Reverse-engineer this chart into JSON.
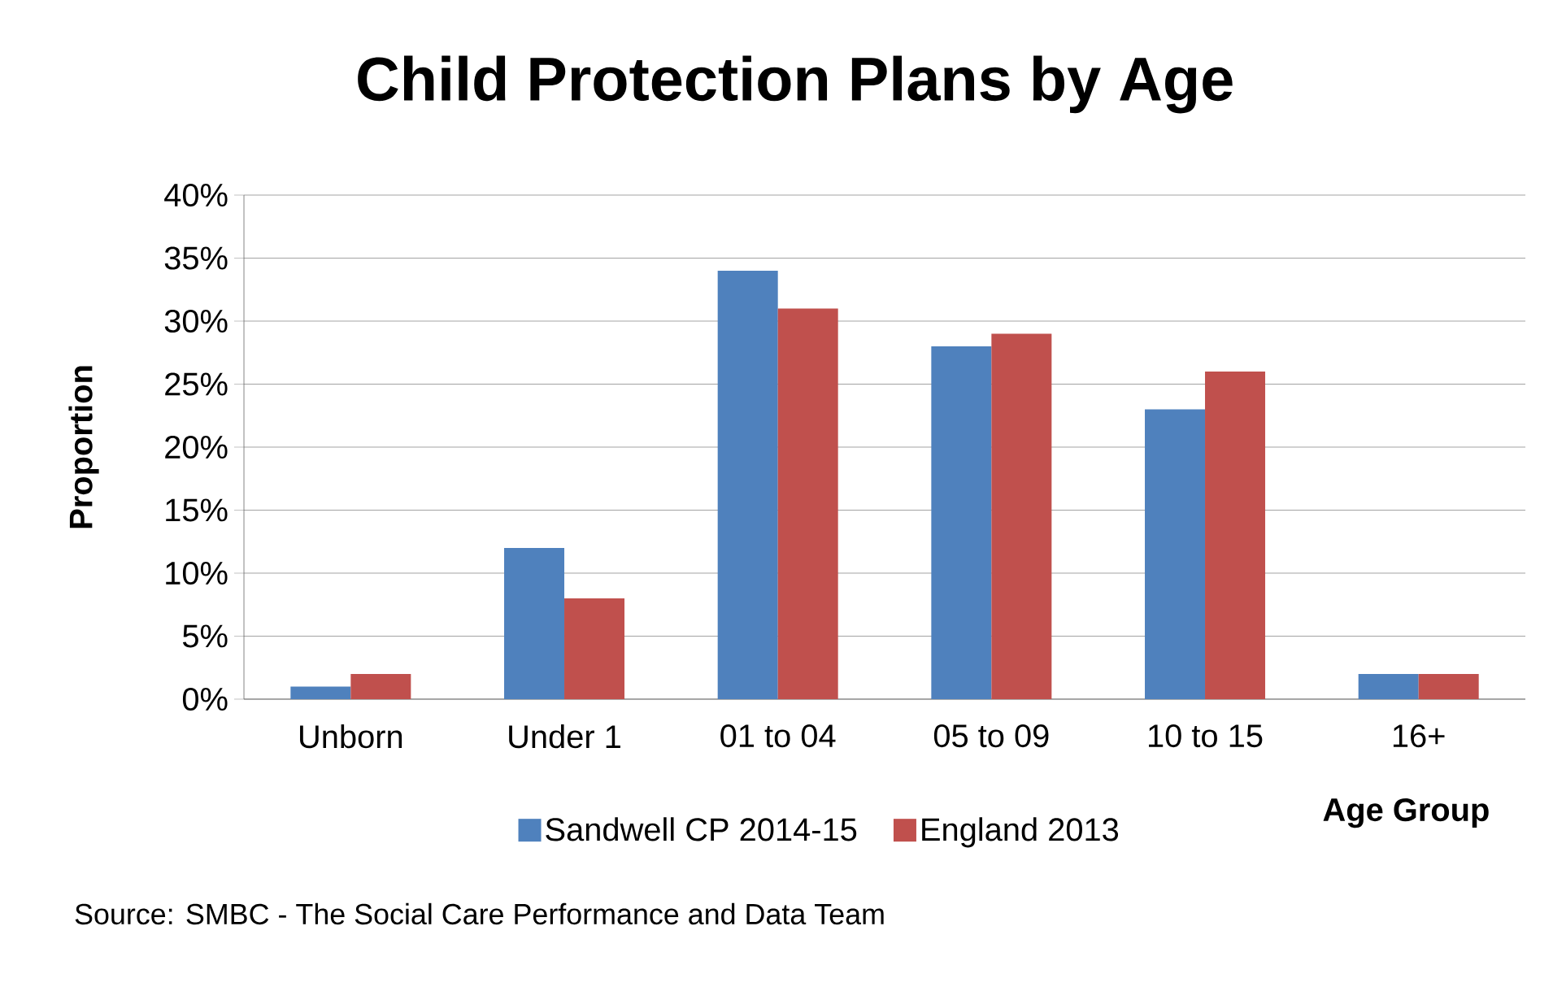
{
  "chart_data": {
    "type": "bar",
    "title": "Child Protection Plans by Age",
    "xlabel": "Age Group",
    "ylabel": "Proportion",
    "categories": [
      "Unborn",
      "Under 1",
      "01 to 04",
      "05 to 09",
      "10 to 15",
      "16+"
    ],
    "series": [
      {
        "name": "Sandwell CP 2014-15",
        "color": "#4f81bd",
        "values": [
          1,
          12,
          34,
          28,
          23,
          2
        ]
      },
      {
        "name": "England 2013",
        "color": "#c0504d",
        "values": [
          2,
          8,
          31,
          29,
          26,
          2
        ]
      }
    ],
    "ylim": [
      0,
      40
    ],
    "yticks": [
      {
        "value": 0,
        "label": "0%"
      },
      {
        "value": 5,
        "label": "5%"
      },
      {
        "value": 10,
        "label": "10%"
      },
      {
        "value": 15,
        "label": "15%"
      },
      {
        "value": 20,
        "label": "20%"
      },
      {
        "value": 25,
        "label": "25%"
      },
      {
        "value": 30,
        "label": "30%"
      },
      {
        "value": 35,
        "label": "35%"
      },
      {
        "value": 40,
        "label": "40%"
      }
    ],
    "grid": "y",
    "legend": "bottom",
    "annotations": [
      "Source: SMBC - The Social Care Performance and Data Team"
    ]
  }
}
